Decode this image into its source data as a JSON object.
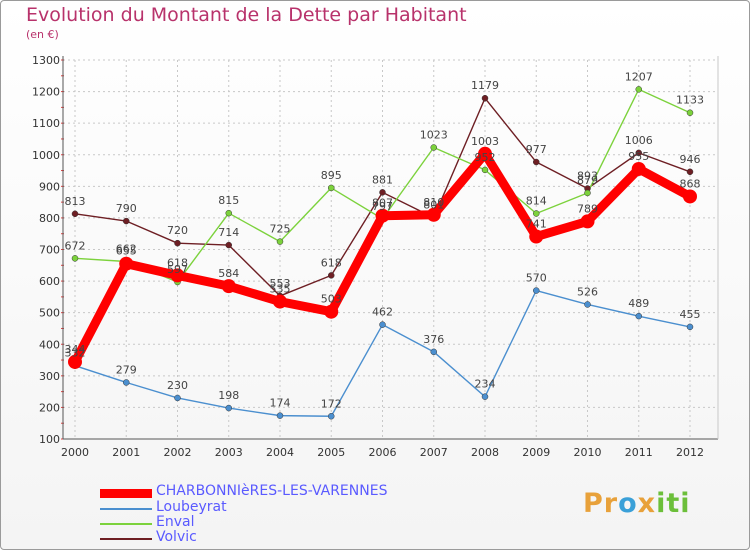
{
  "header": {
    "title": "Evolution du Montant de la Dette par Habitant",
    "subtitle": "(en €)"
  },
  "logo": {
    "text": "Proxiti",
    "colors": [
      "#e8a13a",
      "#3aa0d8",
      "#6cbf3a"
    ]
  },
  "chart_data": {
    "type": "line",
    "x": [
      2000,
      2001,
      2002,
      2003,
      2004,
      2005,
      2006,
      2007,
      2008,
      2009,
      2010,
      2011,
      2012
    ],
    "ylim": [
      100,
      1300
    ],
    "yticks": [
      100,
      200,
      300,
      400,
      500,
      600,
      700,
      800,
      900,
      1000,
      1100,
      1200,
      1300
    ],
    "grid": true,
    "legend_position": "bottom",
    "series": [
      {
        "name": "Volvic",
        "color": "#6e1f24",
        "values": [
          813,
          790,
          720,
          714,
          553,
          618,
          881,
          801,
          1179,
          977,
          893,
          1006,
          946
        ]
      },
      {
        "name": "Enval",
        "color": "#7cd23c",
        "values": [
          672,
          662,
          597,
          815,
          725,
          895,
          797,
          1023,
          952,
          814,
          879,
          1207,
          1133
        ]
      },
      {
        "name": "Loubeyrat",
        "color": "#4b8fcf",
        "values": [
          332,
          279,
          230,
          198,
          174,
          172,
          462,
          376,
          234,
          570,
          526,
          489,
          455
        ]
      },
      {
        "name": "CHARBONNIèRES-LES-VARENNES",
        "color": "#ff0000",
        "values": [
          344,
          655,
          618,
          584,
          535,
          503,
          807,
          810,
          1003,
          741,
          789,
          955,
          868
        ]
      }
    ]
  },
  "legend": [
    {
      "name": "CHARBONNIèRES-LES-VARENNES",
      "color": "#ff0000",
      "thickness": 9
    },
    {
      "name": "Loubeyrat",
      "color": "#4b8fcf",
      "thickness": 2
    },
    {
      "name": "Enval",
      "color": "#7cd23c",
      "thickness": 2
    },
    {
      "name": "Volvic",
      "color": "#6e1f24",
      "thickness": 2
    }
  ]
}
